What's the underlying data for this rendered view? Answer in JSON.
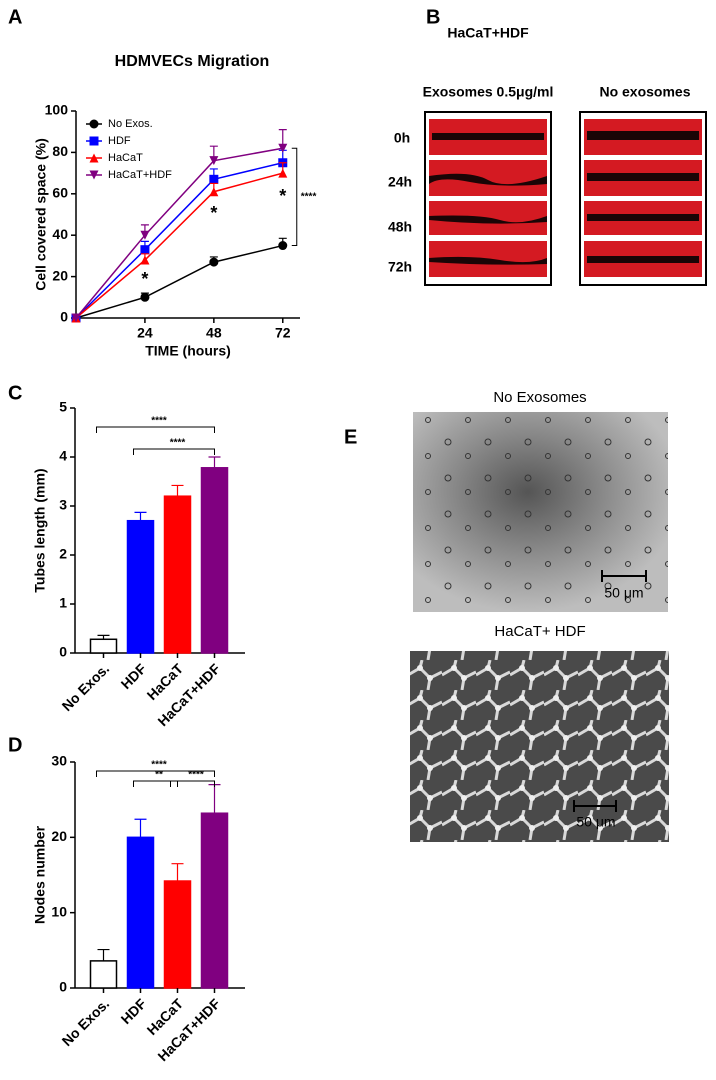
{
  "chart_data": [
    {
      "type": "line",
      "panel_label": "A",
      "title": "HDMVECs Migration",
      "x_label": "TIME (hours)",
      "y_label": "Cell covered space (%)",
      "x": [
        0,
        24,
        48,
        72
      ],
      "xlim": [
        0,
        78
      ],
      "xticks": [
        24,
        48,
        72
      ],
      "ylim": [
        0,
        100
      ],
      "yticks": [
        0,
        20,
        40,
        60,
        80,
        100
      ],
      "legend": "upper left",
      "series": [
        {
          "name": "No Exos.",
          "color": "#000000",
          "marker": "circle",
          "values": [
            0,
            10,
            27,
            35
          ],
          "errors": [
            0,
            2,
            2.5,
            3.5
          ]
        },
        {
          "name": "HDF",
          "color": "#0000ff",
          "marker": "square",
          "values": [
            0,
            33,
            67,
            75
          ],
          "errors": [
            0,
            4,
            5,
            6
          ]
        },
        {
          "name": "HaCaT",
          "color": "#ff0000",
          "marker": "triangle",
          "values": [
            0,
            28,
            61,
            70
          ],
          "errors": [
            0,
            3,
            4,
            5
          ]
        },
        {
          "name": "HaCaT+HDF",
          "color": "#800080",
          "marker": "triangle-down",
          "values": [
            0,
            40,
            76,
            82
          ],
          "errors": [
            0,
            5,
            7,
            9
          ]
        }
      ],
      "annotations": [
        "*",
        "*",
        "*",
        "****"
      ]
    },
    {
      "type": "bar",
      "panel_label": "C",
      "y_label": "Tubes length (mm)",
      "categories": [
        "No Exos.",
        "HDF",
        "HaCaT",
        "HaCaT+HDF"
      ],
      "values": [
        0.28,
        2.7,
        3.2,
        3.78
      ],
      "errors": [
        0.08,
        0.17,
        0.22,
        0.22
      ],
      "colors": [
        "#ffffff",
        "#0000ff",
        "#ff0000",
        "#800080"
      ],
      "edge_colors": [
        "#000000",
        "#0000ff",
        "#ff0000",
        "#800080"
      ],
      "ylim": [
        0,
        5
      ],
      "yticks": [
        0,
        1,
        2,
        3,
        4,
        5
      ],
      "annotations": [
        "****",
        "****"
      ]
    },
    {
      "type": "bar",
      "panel_label": "D",
      "y_label": "Nodes number",
      "categories": [
        "No Exos.",
        "HDF",
        "HaCaT",
        "HaCaT+HDF"
      ],
      "values": [
        3.6,
        20,
        14.2,
        23.2
      ],
      "errors": [
        1.5,
        2.4,
        2.3,
        3.8
      ],
      "colors": [
        "#ffffff",
        "#0000ff",
        "#ff0000",
        "#800080"
      ],
      "edge_colors": [
        "#000000",
        "#0000ff",
        "#ff0000",
        "#800080"
      ],
      "ylim": [
        0,
        30
      ],
      "yticks": [
        0,
        10,
        20,
        30
      ],
      "annotations": [
        "****",
        "**",
        "****"
      ]
    }
  ],
  "panel_b": {
    "label": "B",
    "title": "HaCaT+HDF",
    "left_heading": "Exosomes 0.5μg/ml",
    "right_heading": "No exosomes",
    "rows": [
      "0h",
      "24h",
      "48h",
      "72h"
    ]
  },
  "panel_e": {
    "label": "E",
    "top_caption": "No Exosomes",
    "bottom_caption": "HaCaT+ HDF",
    "scale_top": "50 μm",
    "scale_bottom": "50 μm"
  }
}
